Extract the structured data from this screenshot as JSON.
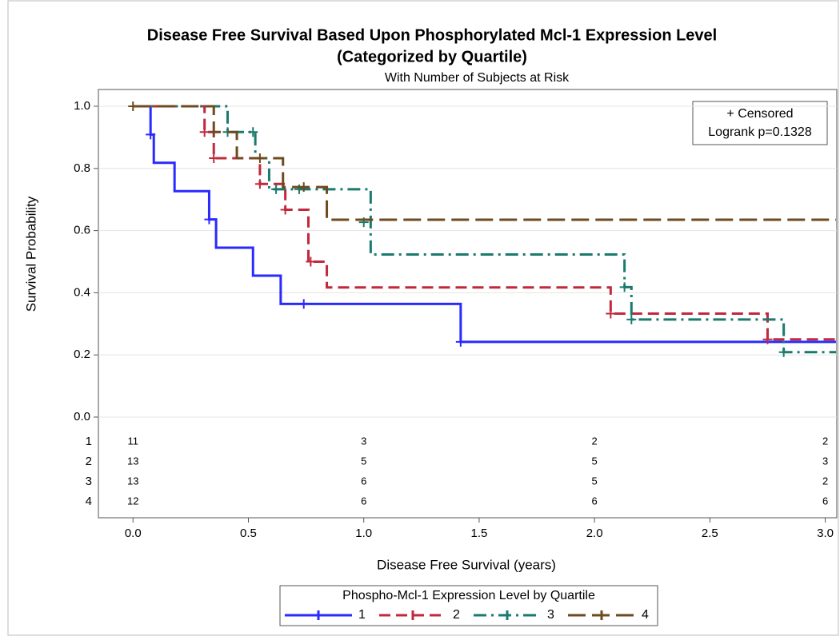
{
  "chart_data": {
    "type": "step",
    "title": "Disease Free Survival Based Upon Phosphorylated Mcl-1 Expression Level",
    "title_line2": "(Categorized by Quartile)",
    "subtitle": "With Number of Subjects at Risk",
    "x_label": "Disease Free Survival (years)",
    "y_label": "Survival Probability",
    "xlim": [
      -0.15,
      3.05
    ],
    "ylim": [
      0,
      1
    ],
    "xticks": [
      {
        "value": 0,
        "label": "0.0"
      },
      {
        "value": 0.5,
        "label": "0.5"
      },
      {
        "value": 1,
        "label": "1.0"
      },
      {
        "value": 1.5,
        "label": "1.5"
      },
      {
        "value": 2,
        "label": "2.0"
      },
      {
        "value": 2.5,
        "label": "2.5"
      },
      {
        "value": 3,
        "label": "3.0"
      }
    ],
    "yticks": [
      {
        "value": 0,
        "label": "0.0"
      },
      {
        "value": 0.2,
        "label": "0.2"
      },
      {
        "value": 0.4,
        "label": "0.4"
      },
      {
        "value": 0.6,
        "label": "0.6"
      },
      {
        "value": 0.8,
        "label": "0.8"
      },
      {
        "value": 1,
        "label": "1.0"
      }
    ],
    "grid": true,
    "inset_legend": [
      "+ Censored",
      "Logrank p=0.1328"
    ],
    "legend_title": "Phospho-Mcl-1 Expression Level by Quartile",
    "series": [
      {
        "name": "1",
        "color": "#2a2aff",
        "x": [
          0,
          0.076,
          0.09,
          0.18,
          0.33,
          0.36,
          0.52,
          0.64,
          1.42
        ],
        "values": [
          1,
          0.909,
          0.818,
          0.727,
          0.636,
          0.545,
          0.455,
          0.364,
          0.242
        ],
        "censored": {
          "x": [
            0.076,
            0.33,
            0.74,
            1.42
          ],
          "values": [
            0.909,
            0.636,
            0.364,
            0.242
          ]
        }
      },
      {
        "name": "2",
        "color": "#c0283c",
        "x": [
          0,
          0.31,
          0.35,
          0.55,
          0.66,
          0.76,
          0.84,
          2.07,
          2.75
        ],
        "values": [
          1,
          0.917,
          0.833,
          0.75,
          0.667,
          0.5,
          0.417,
          0.333,
          0.25
        ],
        "censored": {
          "x": [
            0.31,
            0.35,
            0.55,
            0.66,
            0.77,
            2.07,
            2.75
          ],
          "values": [
            0.917,
            0.833,
            0.75,
            0.667,
            0.5,
            0.333,
            0.25
          ]
        }
      },
      {
        "name": "3",
        "color": "#1a7a6e",
        "x": [
          0,
          0.41,
          0.53,
          0.59,
          1.03,
          2.13,
          2.16,
          2.82
        ],
        "values": [
          1,
          0.917,
          0.833,
          0.733,
          0.523,
          0.418,
          0.314,
          0.209
        ],
        "censored": {
          "x": [
            0.41,
            0.52,
            0.62,
            0.72,
            1.0,
            2.13,
            2.16,
            2.82
          ],
          "values": [
            0.917,
            0.917,
            0.733,
            0.733,
            0.627,
            0.418,
            0.314,
            0.209
          ]
        }
      },
      {
        "name": "4",
        "color": "#6e4a1e",
        "x": [
          0,
          0.35,
          0.45,
          0.65,
          0.84
        ],
        "values": [
          1,
          0.917,
          0.833,
          0.74,
          0.635
        ],
        "censored": {
          "x": [
            0,
            0.35,
            0.55,
            0.74
          ],
          "values": [
            1,
            0.917,
            0.833,
            0.74
          ]
        }
      }
    ],
    "at_risk": {
      "times": [
        0,
        1,
        2,
        3
      ],
      "counts": [
        [
          11,
          3,
          2,
          2
        ],
        [
          13,
          5,
          5,
          3
        ],
        [
          13,
          6,
          5,
          2
        ],
        [
          12,
          6,
          6,
          6
        ]
      ]
    }
  }
}
